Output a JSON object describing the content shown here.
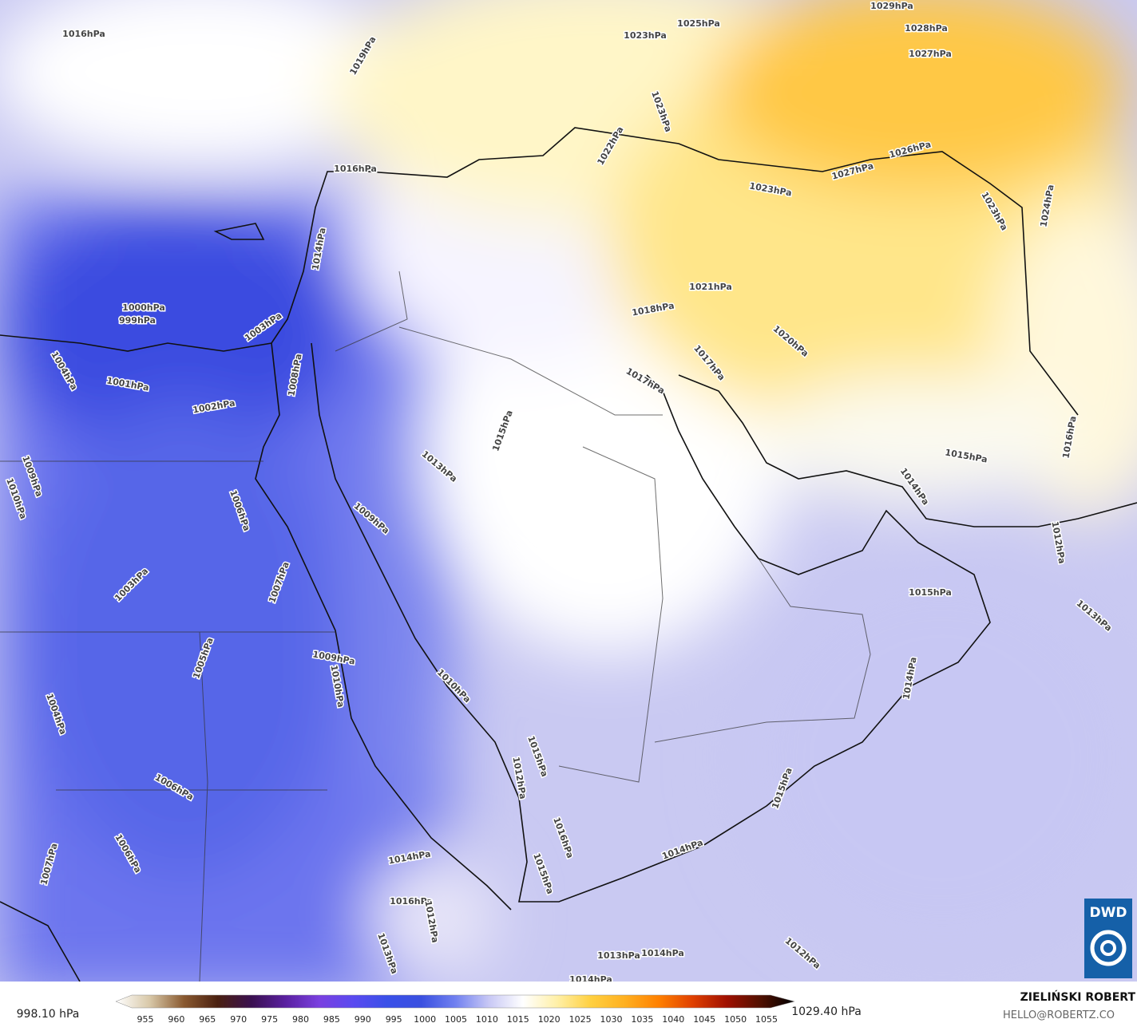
{
  "map": {
    "isobar_labels": [
      "1016hPa",
      "1019hPa",
      "1023hPa",
      "1025hPa",
      "1029hPa",
      "1028hPa",
      "1027hPa",
      "1023hPa",
      "1022hPa",
      "1016hPa",
      "1027hPa",
      "1026hPa",
      "1023hPa",
      "1023hPa",
      "1024hPa",
      "1021hPa",
      "1018hPa",
      "1020hPa",
      "1017hPa",
      "1017hPa",
      "1014hPa",
      "1000hPa",
      "999hPa",
      "1003hPa",
      "1004hPa",
      "1001hPa",
      "1002hPa",
      "1008hPa",
      "1015hPa",
      "1013hPa",
      "1009hPa",
      "1010hPa",
      "1006hPa",
      "1009hPa",
      "1016hPa",
      "1015hPa",
      "1014hPa",
      "1012hPa",
      "1007hPa",
      "1003hPa",
      "1015hPa",
      "1013hPa",
      "1005hPa",
      "1009hPa",
      "1010hPa",
      "1014hPa",
      "1010hPa",
      "1004hPa",
      "1015hPa",
      "1012hPa",
      "1006hPa",
      "1015hPa",
      "1016hPa",
      "1014hPa",
      "1006hPa",
      "1014hPa",
      "1007hPa",
      "1015hPa",
      "1016hPa",
      "1012hPa",
      "1013hPa",
      "1014hPa",
      "1013hPa",
      "1012hPa",
      "1014hPa"
    ]
  },
  "colorbar": {
    "min_label": "998.10 hPa",
    "max_label": "1029.40 hPa",
    "ticks": [
      955,
      960,
      965,
      970,
      975,
      980,
      985,
      990,
      995,
      1000,
      1005,
      1010,
      1015,
      1020,
      1025,
      1030,
      1035,
      1040,
      1045,
      1050,
      1055
    ],
    "colors": [
      "#ffffff",
      "#d8c8a8",
      "#8a5a30",
      "#4a2010",
      "#3a1050",
      "#5a20a0",
      "#7a40e0",
      "#5a4af0",
      "#3a50e8",
      "#3a50e0",
      "#7080f0",
      "#c8c8f5",
      "#ffffff",
      "#fff0a8",
      "#ffd040",
      "#ffb020",
      "#ff8000",
      "#e04000",
      "#a01000",
      "#501000",
      "#000000"
    ]
  },
  "credit": {
    "name": "ZIELIŃSKI ROBERT",
    "contact": "HELLO@ROBERTZ.CO"
  },
  "logo": "DWD"
}
